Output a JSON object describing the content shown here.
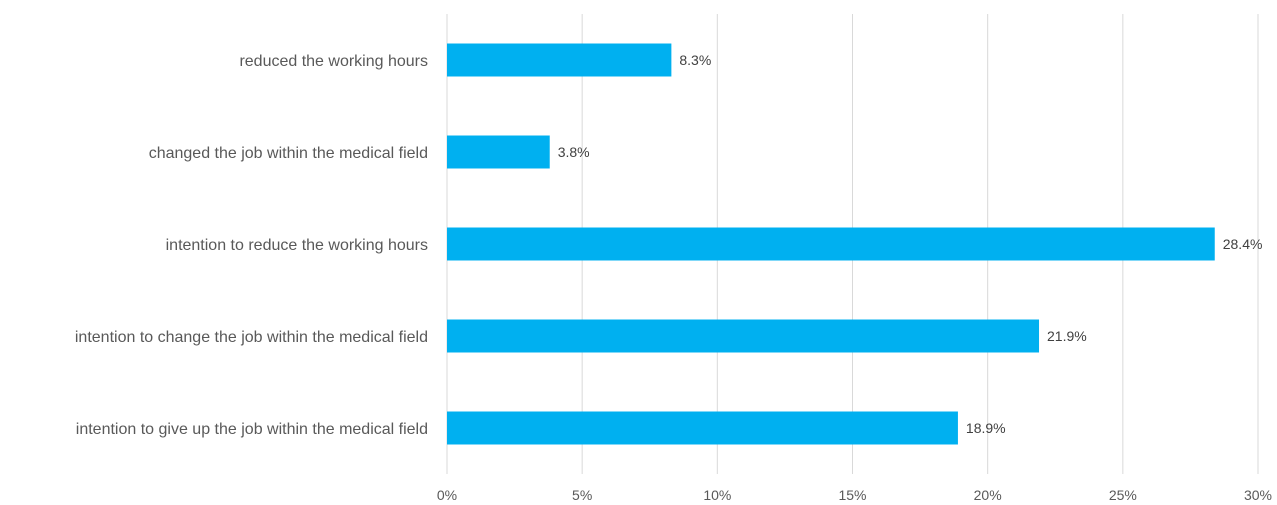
{
  "chart_data": {
    "type": "bar",
    "orientation": "horizontal",
    "categories": [
      "reduced the working hours",
      "changed the job within the medical field",
      "intention to reduce the working hours",
      "intention to change the job within the medical field",
      "intention to give up the job within the medical field"
    ],
    "values": [
      8.3,
      3.8,
      28.4,
      21.9,
      18.9
    ],
    "data_labels": [
      "8.3%",
      "3.8%",
      "28.4%",
      "21.9%",
      "18.9%"
    ],
    "xlim": [
      0,
      30
    ],
    "x_ticks": [
      "0%",
      "5%",
      "10%",
      "15%",
      "20%",
      "25%",
      "30%"
    ],
    "grid": "vertical",
    "legend": "none",
    "bar_color": "#00B0F0",
    "grid_color": "#D9D9D9"
  }
}
